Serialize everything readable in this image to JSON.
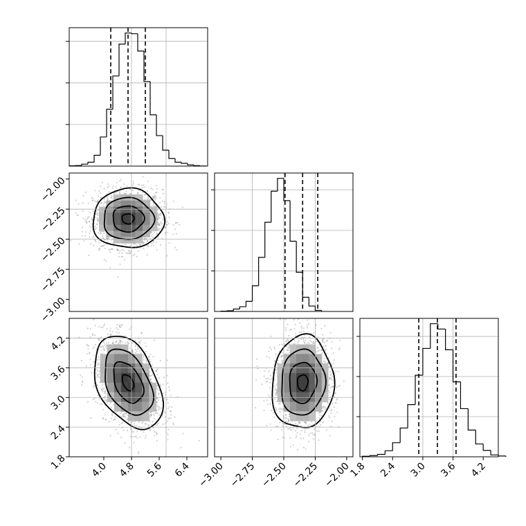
{
  "chart_data": [
    {
      "type": "histogram",
      "panel": "marginal-x0",
      "bin_start": 3.0,
      "bin_width": 0.18,
      "counts": [
        2,
        4,
        14,
        28,
        78,
        210,
        410,
        650,
        880,
        960,
        955,
        830,
        610,
        370,
        220,
        115,
        55,
        28,
        20,
        9,
        3,
        1
      ],
      "xlim": [
        3.0,
        7.0
      ],
      "quantiles": [
        4.2,
        4.7,
        5.2
      ],
      "gridlines_x": [
        4.8,
        5.8
      ],
      "gridlines_y": [
        300,
        600,
        900
      ]
    },
    {
      "type": "histogram",
      "panel": "marginal-x1",
      "bin_start": -3.0,
      "bin_width": 0.05,
      "counts": [
        2,
        5,
        18,
        35,
        75,
        190,
        400,
        660,
        890,
        985,
        820,
        520,
        290,
        105,
        40,
        8
      ],
      "xlim": [
        -3.05,
        -1.95
      ],
      "quantiles": [
        -2.49,
        -2.35,
        -2.23
      ],
      "gridlines_x": [
        -2.75,
        -2.5,
        -2.25
      ],
      "gridlines_y": [
        300,
        600,
        900
      ]
    },
    {
      "type": "histogram",
      "panel": "marginal-x2",
      "bin_start": 1.8,
      "bin_width": 0.15,
      "counts": [
        4,
        9,
        18,
        45,
        105,
        215,
        390,
        610,
        810,
        995,
        955,
        800,
        560,
        360,
        200,
        96,
        48,
        14,
        6
      ],
      "xlim": [
        1.75,
        4.5
      ],
      "quantiles": [
        2.92,
        3.29,
        3.66
      ],
      "gridlines_x": [
        3.0,
        3.6
      ],
      "gridlines_y": [
        300,
        600,
        900
      ]
    },
    {
      "type": "density2d",
      "panel": "x0-x1",
      "x": "x0",
      "y": "x1",
      "center": [
        4.7,
        -2.33
      ],
      "sd": [
        0.5,
        0.12
      ],
      "rho": 0,
      "xlim": [
        3.0,
        7.0
      ],
      "ylim": [
        -3.1,
        -1.95
      ],
      "grid_x": [
        4.8,
        5.8
      ],
      "grid_y": [
        -2.25,
        -2.5,
        -2.75
      ]
    },
    {
      "type": "density2d",
      "panel": "x0-x2",
      "x": "x0",
      "y": "x2",
      "center": [
        4.7,
        3.3
      ],
      "sd": [
        0.48,
        0.46
      ],
      "rho": -0.4,
      "xlim": [
        3.0,
        7.0
      ],
      "ylim": [
        1.8,
        4.6
      ],
      "grid_x": [
        4.8,
        5.8
      ],
      "grid_y": [
        2.4,
        3.0,
        3.6,
        4.2
      ]
    },
    {
      "type": "density2d",
      "panel": "x1-x2",
      "x": "x1",
      "y": "x2",
      "center": [
        -2.35,
        3.3
      ],
      "sd": [
        0.12,
        0.46
      ],
      "rho": 0.05,
      "xlim": [
        -3.05,
        -1.95
      ],
      "ylim": [
        1.8,
        4.6
      ],
      "grid_x": [
        -2.75,
        -2.5,
        -2.25
      ],
      "grid_y": [
        2.4,
        3.0,
        3.6,
        4.2
      ]
    }
  ],
  "axes": {
    "x0_ticks": [
      "4.0",
      "4.8",
      "5.6",
      "6.4"
    ],
    "x0_tick_values": [
      4.0,
      4.8,
      5.6,
      6.4
    ],
    "x1_ticks": [
      "−3.00",
      "−2.75",
      "−2.50",
      "−2.25",
      "−2.00"
    ],
    "x1_tick_values": [
      -3.0,
      -2.75,
      -2.5,
      -2.25,
      -2.0
    ],
    "x2_ticks": [
      "1.8",
      "2.4",
      "3.0",
      "3.6",
      "4.2"
    ],
    "x2_tick_values": [
      1.8,
      2.4,
      3.0,
      3.6,
      4.2
    ]
  },
  "style": {
    "hist_color": "#000000",
    "grid_color": "#b0b0b0",
    "scatter_color": "#9a9a9a"
  }
}
